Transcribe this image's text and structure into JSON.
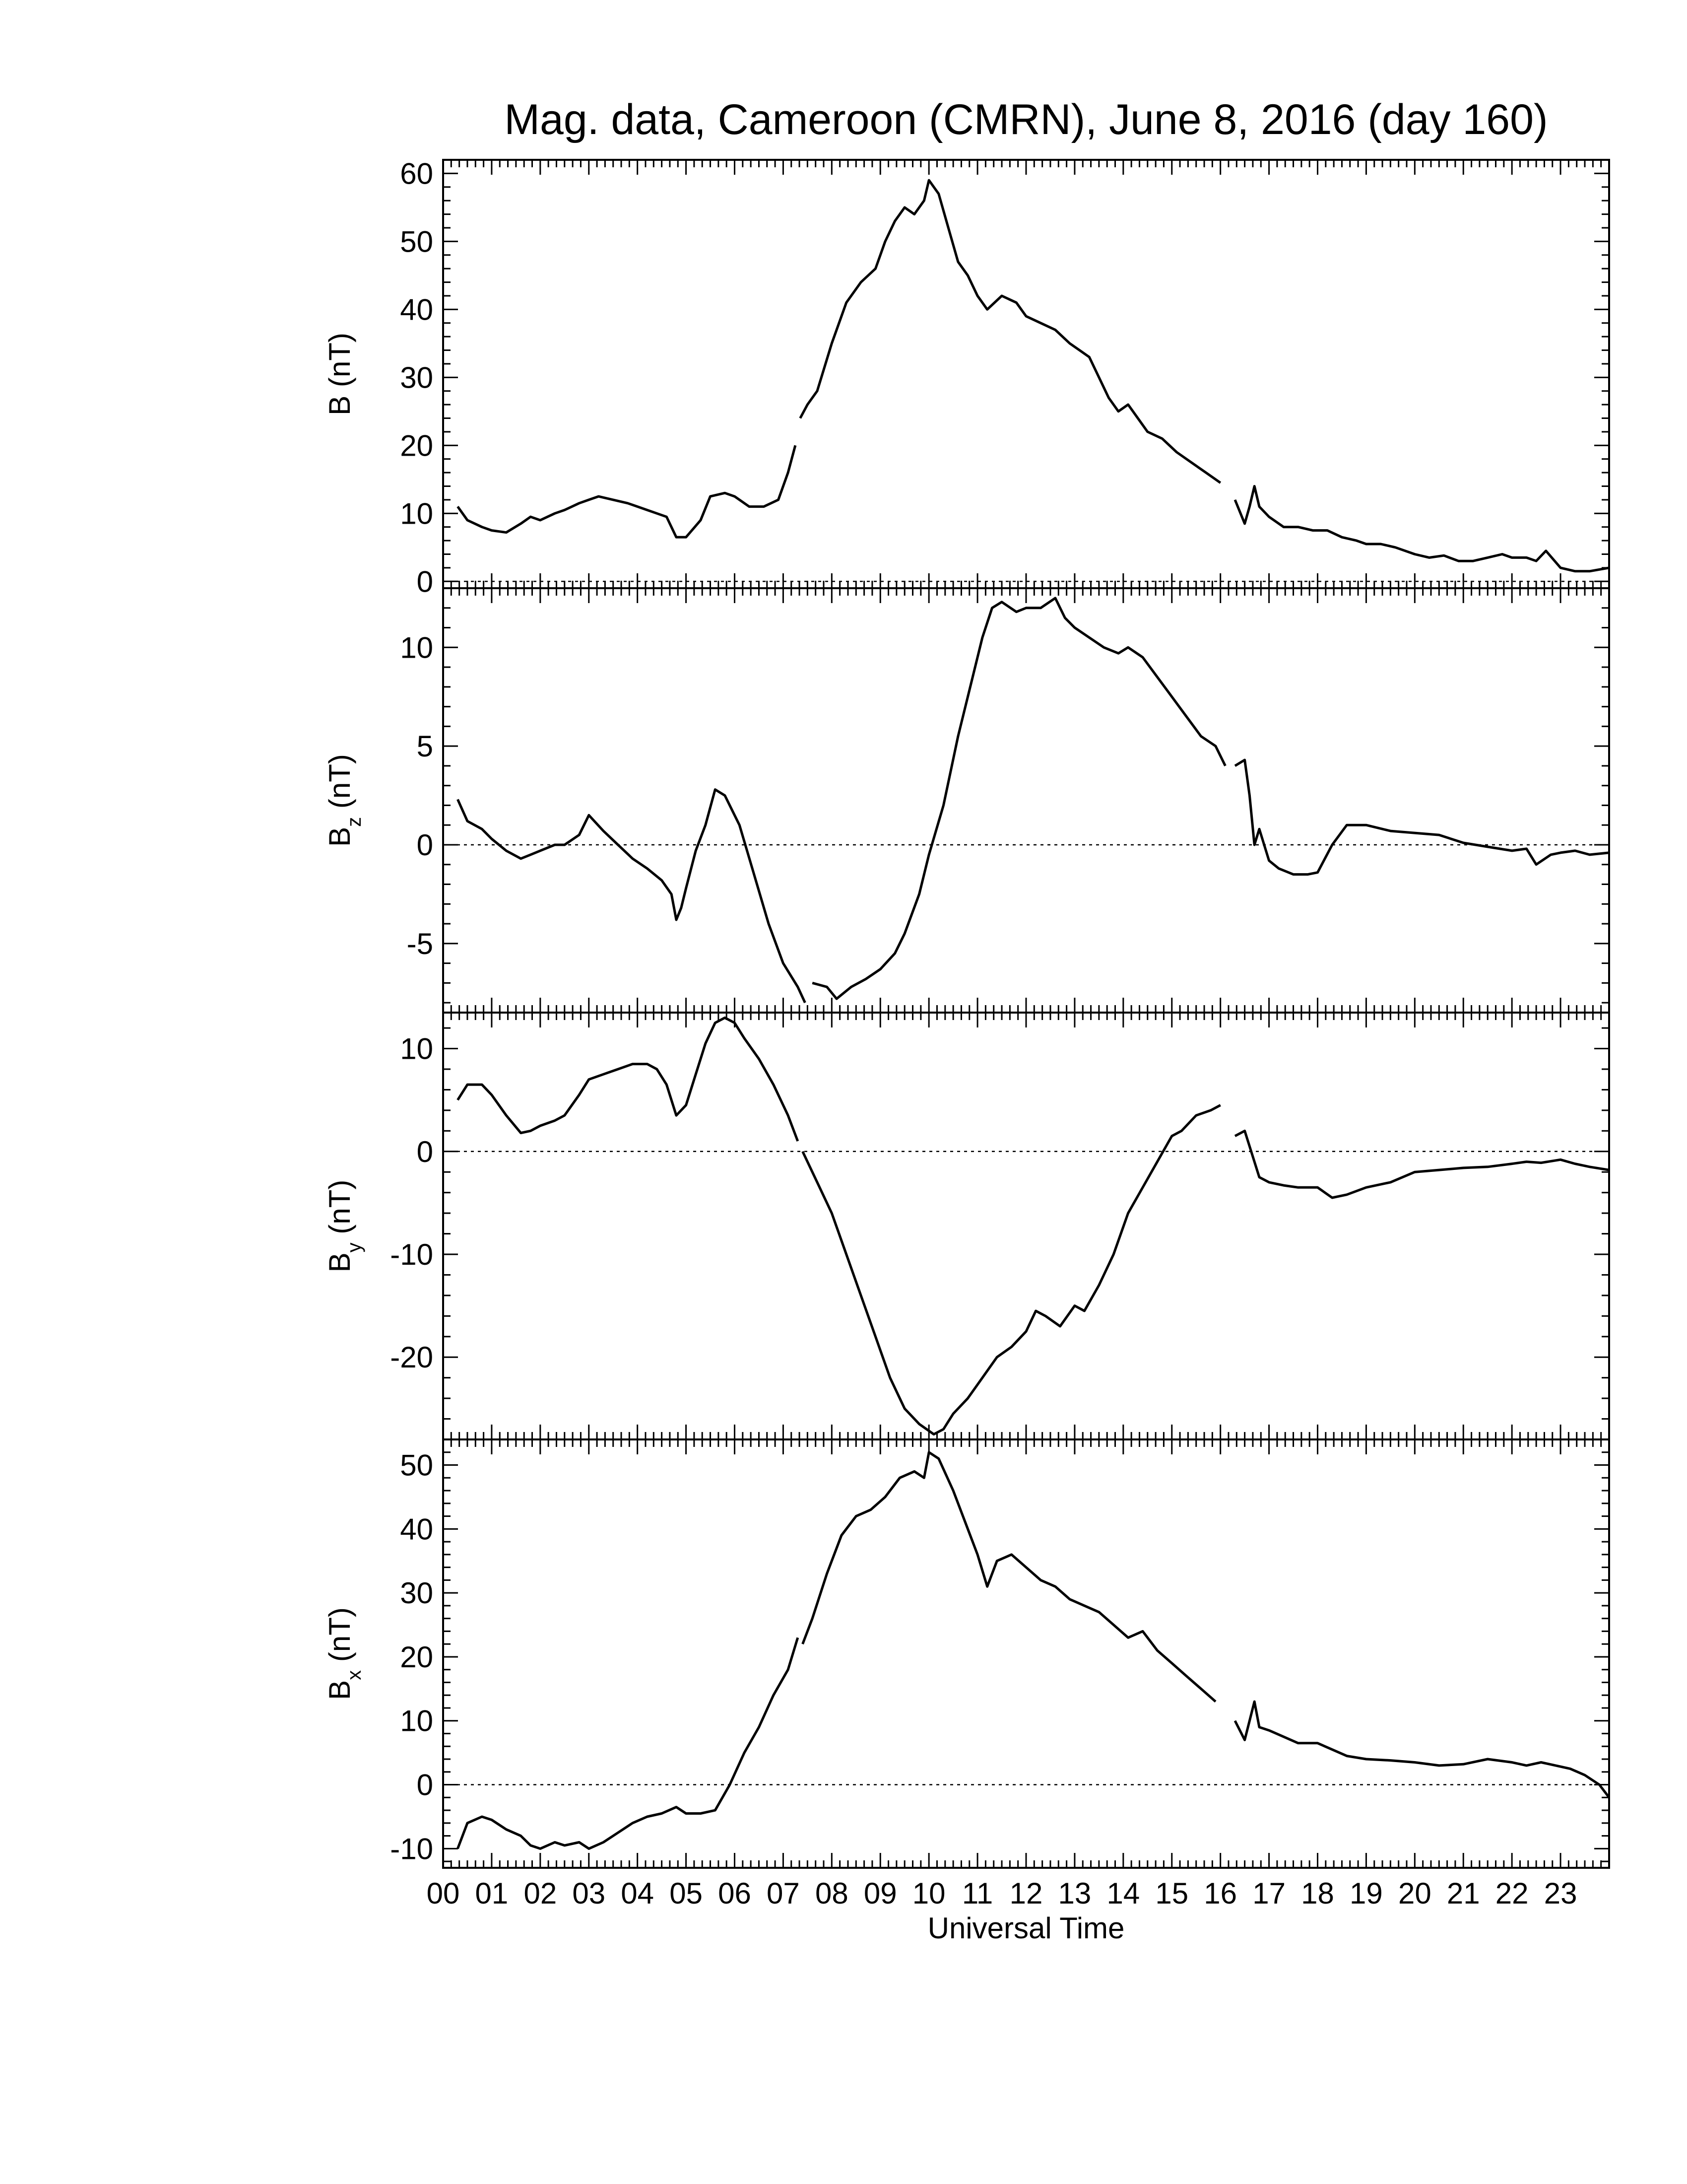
{
  "chart_data": {
    "type": "line",
    "title": "Mag. data, Cameroon (CMRN), June 8, 2016 (day 160)",
    "xlabel": "Universal Time",
    "xlim": [
      0,
      24
    ],
    "x_ticks": [
      "00",
      "01",
      "02",
      "03",
      "04",
      "05",
      "06",
      "07",
      "08",
      "09",
      "10",
      "11",
      "12",
      "13",
      "14",
      "15",
      "16",
      "17",
      "18",
      "19",
      "20",
      "21",
      "22",
      "23"
    ],
    "panels": [
      {
        "name": "B",
        "ylabel": "B (nT)",
        "ylabel_main": "B",
        "ylabel_sub": "",
        "ylabel_unit": "(nT)",
        "ylim": [
          -1,
          62
        ],
        "yticks": [
          0,
          10,
          20,
          30,
          40,
          50,
          60
        ],
        "zero_line": true,
        "series": [
          {
            "x": [
              0.3,
              0.5,
              0.8,
              1.0,
              1.3,
              1.6,
              1.8,
              2.0,
              2.3,
              2.5,
              2.8,
              3.0,
              3.2,
              3.5,
              3.8,
              4.0,
              4.2,
              4.4,
              4.6,
              4.8,
              5.0,
              5.3,
              5.5,
              5.8,
              6.0,
              6.3,
              6.6,
              6.9,
              7.1,
              7.25
            ],
            "y": [
              11,
              9,
              8,
              7.5,
              7.2,
              8.5,
              9.5,
              9,
              10,
              10.5,
              11.5,
              12,
              12.5,
              12,
              11.5,
              11,
              10.5,
              10,
              9.5,
              6.5,
              6.5,
              9,
              12.5,
              13,
              12.5,
              11,
              11,
              12,
              16,
              20
            ]
          },
          {
            "x": [
              7.35,
              7.5,
              7.7,
              8.0,
              8.3,
              8.6,
              8.9,
              9.1,
              9.3,
              9.5,
              9.7,
              9.9,
              10.0,
              10.2,
              10.4,
              10.6,
              10.8,
              11.0,
              11.2,
              11.5,
              11.8,
              12.0,
              12.3,
              12.6,
              12.9,
              13.1,
              13.3,
              13.5,
              13.7,
              13.9,
              14.1,
              14.3,
              14.5,
              14.8,
              15.1,
              15.4,
              15.7,
              16.0
            ],
            "y": [
              24,
              26,
              28,
              35,
              41,
              44,
              46,
              50,
              53,
              55,
              54,
              56,
              59,
              57,
              52,
              47,
              45,
              42,
              40,
              42,
              41,
              39,
              38,
              37,
              35,
              34,
              33,
              30,
              27,
              25,
              26,
              24,
              22,
              21,
              19,
              17.5,
              16,
              14.5
            ]
          },
          {
            "x": [
              16.3,
              16.5,
              16.6,
              16.7,
              16.8,
              17.0,
              17.3,
              17.6,
              17.9,
              18.2,
              18.5,
              18.8,
              19.0,
              19.3,
              19.6,
              20.0,
              20.3,
              20.6,
              20.9,
              21.2,
              21.5,
              21.8,
              22.0,
              22.3,
              22.5,
              22.7,
              23.0,
              23.3,
              23.6,
              24.0
            ],
            "y": [
              12,
              8.5,
              11,
              14,
              11,
              9.5,
              8,
              8,
              7.5,
              7.5,
              6.5,
              6,
              5.5,
              5.5,
              5,
              4,
              3.5,
              3.8,
              3,
              3,
              3.5,
              4,
              3.5,
              3.5,
              3,
              4.5,
              2,
              1.5,
              1.5,
              2
            ]
          }
        ]
      },
      {
        "name": "Bz",
        "ylabel": "Bz (nT)",
        "ylabel_main": "B",
        "ylabel_sub": "z",
        "ylabel_unit": "(nT)",
        "ylim": [
          -8.5,
          13
        ],
        "yticks": [
          -5,
          0,
          5,
          10
        ],
        "zero_line": true,
        "series": [
          {
            "x": [
              0.3,
              0.5,
              0.8,
              1.0,
              1.3,
              1.6,
              1.8,
              2.0,
              2.3,
              2.5,
              2.8,
              3.0,
              3.3,
              3.6,
              3.9,
              4.2,
              4.5,
              4.7,
              4.8,
              4.9,
              5.0,
              5.2,
              5.4,
              5.6,
              5.8,
              6.1,
              6.4,
              6.7,
              7.0,
              7.3,
              7.45
            ],
            "y": [
              2.3,
              1.2,
              0.8,
              0.3,
              -0.3,
              -0.7,
              -0.5,
              -0.3,
              0,
              0,
              0.5,
              1.5,
              0.7,
              0,
              -0.7,
              -1.2,
              -1.8,
              -2.5,
              -3.8,
              -3.2,
              -2.2,
              -0.3,
              1,
              2.8,
              2.5,
              1,
              -1.5,
              -4,
              -6,
              -7.2,
              -8
            ]
          },
          {
            "x": [
              7.6,
              7.9,
              8.1,
              8.4,
              8.7,
              9.0,
              9.3,
              9.5,
              9.8,
              10.0,
              10.3,
              10.6,
              10.9,
              11.1,
              11.3,
              11.5,
              11.8,
              12.0,
              12.3,
              12.6,
              12.8,
              13.0,
              13.3,
              13.6,
              13.9,
              14.1,
              14.4,
              14.7,
              15.0,
              15.3,
              15.6,
              15.9,
              16.1
            ],
            "y": [
              -7,
              -7.2,
              -7.8,
              -7.2,
              -6.8,
              -6.3,
              -5.5,
              -4.5,
              -2.5,
              -0.5,
              2,
              5.5,
              8.5,
              10.5,
              12,
              12.3,
              11.8,
              12,
              12,
              12.5,
              11.5,
              11,
              10.5,
              10,
              9.7,
              10,
              9.5,
              8.5,
              7.5,
              6.5,
              5.5,
              5,
              4
            ]
          },
          {
            "x": [
              16.3,
              16.5,
              16.6,
              16.7,
              16.8,
              17.0,
              17.2,
              17.5,
              17.8,
              18.0,
              18.3,
              18.6,
              19.0,
              19.5,
              20.0,
              20.5,
              21.0,
              21.5,
              22.0,
              22.3,
              22.5,
              22.8,
              23.0,
              23.3,
              23.6,
              24.0
            ],
            "y": [
              4,
              4.3,
              2.5,
              0,
              0.8,
              -0.8,
              -1.2,
              -1.5,
              -1.5,
              -1.4,
              0,
              1,
              1,
              0.7,
              0.6,
              0.5,
              0.1,
              -0.1,
              -0.3,
              -0.2,
              -1,
              -0.5,
              -0.4,
              -0.3,
              -0.5,
              -0.4
            ]
          }
        ]
      },
      {
        "name": "By",
        "ylabel": "By (nT)",
        "ylabel_main": "B",
        "ylabel_sub": "y",
        "ylabel_unit": "(nT)",
        "ylim": [
          -28,
          13.5
        ],
        "yticks": [
          -20,
          -10,
          0,
          10
        ],
        "zero_line": true,
        "series": [
          {
            "x": [
              0.3,
              0.5,
              0.8,
              1.0,
              1.3,
              1.6,
              1.8,
              2.0,
              2.3,
              2.5,
              2.8,
              3.0,
              3.3,
              3.6,
              3.9,
              4.2,
              4.4,
              4.6,
              4.8,
              5.0,
              5.2,
              5.4,
              5.6,
              5.8,
              6.0,
              6.2,
              6.5,
              6.8,
              7.1,
              7.3
            ],
            "y": [
              5,
              6.5,
              6.5,
              5.5,
              3.5,
              1.8,
              2,
              2.5,
              3,
              3.5,
              5.5,
              7,
              7.5,
              8,
              8.5,
              8.5,
              8,
              6.5,
              3.5,
              4.5,
              7.5,
              10.5,
              12.5,
              13,
              12.5,
              11,
              9,
              6.5,
              3.5,
              1
            ]
          },
          {
            "x": [
              7.4,
              7.7,
              8.0,
              8.3,
              8.6,
              8.9,
              9.2,
              9.5,
              9.8,
              10.1,
              10.3,
              10.5,
              10.8,
              11.1,
              11.4,
              11.7,
              12.0,
              12.2,
              12.4,
              12.7,
              13.0,
              13.2,
              13.5,
              13.8,
              14.1,
              14.4,
              14.7,
              15.0,
              15.2,
              15.5,
              15.8,
              16.0
            ],
            "y": [
              0,
              -3,
              -6,
              -10,
              -14,
              -18,
              -22,
              -25,
              -26.5,
              -27.5,
              -27,
              -25.5,
              -24,
              -22,
              -20,
              -19,
              -17.5,
              -15.5,
              -16,
              -17,
              -15,
              -15.5,
              -13,
              -10,
              -6,
              -3.5,
              -1,
              1.5,
              2,
              3.5,
              4,
              4.5
            ]
          },
          {
            "x": [
              16.3,
              16.5,
              16.6,
              16.8,
              17.0,
              17.3,
              17.6,
              18.0,
              18.3,
              18.6,
              19.0,
              19.5,
              20.0,
              20.5,
              21.0,
              21.5,
              22.0,
              22.3,
              22.6,
              23.0,
              23.3,
              23.6,
              24.0
            ],
            "y": [
              1.5,
              2,
              0.5,
              -2.5,
              -3,
              -3.3,
              -3.5,
              -3.5,
              -4.5,
              -4.2,
              -3.5,
              -3,
              -2,
              -1.8,
              -1.6,
              -1.5,
              -1.2,
              -1,
              -1.1,
              -0.8,
              -1.2,
              -1.5,
              -1.8
            ]
          }
        ]
      },
      {
        "name": "Bx",
        "ylabel": "Bx (nT)",
        "ylabel_main": "B",
        "ylabel_sub": "x",
        "ylabel_unit": "(nT)",
        "ylim": [
          -13,
          54
        ],
        "yticks": [
          -10,
          0,
          10,
          20,
          30,
          40,
          50
        ],
        "zero_line": true,
        "series": [
          {
            "x": [
              0.3,
              0.5,
              0.8,
              1.0,
              1.3,
              1.6,
              1.8,
              2.0,
              2.3,
              2.5,
              2.8,
              3.0,
              3.3,
              3.6,
              3.9,
              4.2,
              4.5,
              4.8,
              5.0,
              5.3,
              5.6,
              5.9,
              6.2,
              6.5,
              6.8,
              7.1,
              7.3
            ],
            "y": [
              -10,
              -6,
              -5,
              -5.5,
              -7,
              -8,
              -9.5,
              -10,
              -9,
              -9.5,
              -9,
              -10,
              -9,
              -7.5,
              -6,
              -5,
              -4.5,
              -3.5,
              -4.5,
              -4.5,
              -4,
              0,
              5,
              9,
              14,
              18,
              23
            ]
          },
          {
            "x": [
              7.4,
              7.6,
              7.9,
              8.2,
              8.5,
              8.8,
              9.1,
              9.4,
              9.7,
              9.9,
              10.0,
              10.2,
              10.5,
              10.8,
              11.0,
              11.2,
              11.4,
              11.7,
              12.0,
              12.3,
              12.6,
              12.9,
              13.2,
              13.5,
              13.8,
              14.1,
              14.4,
              14.7,
              15.0,
              15.3,
              15.6,
              15.9
            ],
            "y": [
              22,
              26,
              33,
              39,
              42,
              43,
              45,
              48,
              49,
              48,
              52,
              51,
              46,
              40,
              36,
              31,
              35,
              36,
              34,
              32,
              31,
              29,
              28,
              27,
              25,
              23,
              24,
              21,
              19,
              17,
              15,
              13
            ]
          },
          {
            "x": [
              16.3,
              16.5,
              16.6,
              16.7,
              16.8,
              17.0,
              17.3,
              17.6,
              18.0,
              18.3,
              18.6,
              19.0,
              19.5,
              20.0,
              20.5,
              21.0,
              21.5,
              22.0,
              22.3,
              22.6,
              22.9,
              23.2,
              23.5,
              23.8,
              24.0
            ],
            "y": [
              10,
              7,
              10,
              13,
              9,
              8.5,
              7.5,
              6.5,
              6.5,
              5.5,
              4.5,
              4,
              3.8,
              3.5,
              3,
              3.2,
              4,
              3.5,
              3,
              3.5,
              3,
              2.5,
              1.5,
              0,
              -2
            ]
          }
        ]
      }
    ]
  }
}
